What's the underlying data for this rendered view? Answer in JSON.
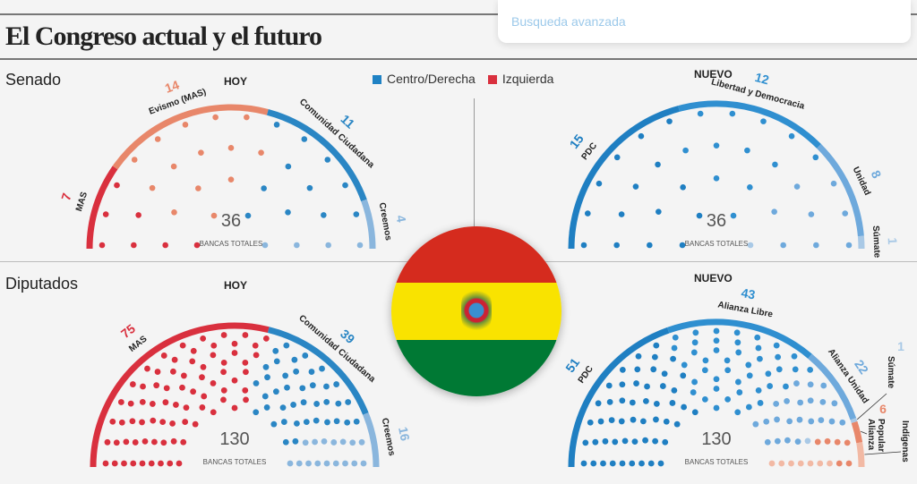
{
  "search": {
    "placeholder": "Busqueda avanzada"
  },
  "title": "El Congreso actual y el futuro",
  "legend": [
    {
      "label": "Centro/Derecha",
      "color": "#1f82c4"
    },
    {
      "label": "Izquierda",
      "color": "#d9303e"
    }
  ],
  "chart_data": [
    {
      "type": "parliament",
      "section": "Senado",
      "label": "HOY",
      "total": 36,
      "total_label": "BANCAS TOTALES",
      "parties": [
        {
          "name": "MAS",
          "seats": 7,
          "color": "#d9303e"
        },
        {
          "name": "Evismo (MAS)",
          "seats": 14,
          "color": "#e8876a"
        },
        {
          "name": "Comunidad Ciudadana",
          "seats": 11,
          "color": "#2a86c4"
        },
        {
          "name": "Creemos",
          "seats": 4,
          "color": "#8ab6dd"
        }
      ]
    },
    {
      "type": "parliament",
      "section": "Senado",
      "label": "NUEVO",
      "total": 36,
      "total_label": "BANCAS TOTALES",
      "parties": [
        {
          "name": "PDC",
          "seats": 15,
          "color": "#1f7fc2"
        },
        {
          "name": "Libertad y Democracia",
          "seats": 12,
          "color": "#2f8fd0"
        },
        {
          "name": "Unidad",
          "seats": 8,
          "color": "#6ea9dc"
        },
        {
          "name": "Súmate",
          "seats": 1,
          "color": "#a9c9e6"
        }
      ]
    },
    {
      "type": "parliament",
      "section": "Diputados",
      "label": "HOY",
      "total": 130,
      "total_label": "BANCAS TOTALES",
      "parties": [
        {
          "name": "MAS",
          "seats": 75,
          "color": "#d9303e"
        },
        {
          "name": "Comunidad Ciudadana",
          "seats": 39,
          "color": "#2a86c4"
        },
        {
          "name": "Creemos",
          "seats": 16,
          "color": "#8ab6dd"
        }
      ]
    },
    {
      "type": "parliament",
      "section": "Diputados",
      "label": "NUEVO",
      "total": 130,
      "total_label": "BANCAS TOTALES",
      "parties": [
        {
          "name": "PDC",
          "seats": 51,
          "color": "#1f7fc2"
        },
        {
          "name": "Alianza Libre",
          "seats": 43,
          "color": "#2f8fd0"
        },
        {
          "name": "Alianza Unidad",
          "seats": 22,
          "color": "#6ea9dc"
        },
        {
          "name": "Súmate",
          "seats": 1,
          "color": "#a9c9e6"
        },
        {
          "name": "Alianza Popular",
          "seats": 6,
          "color": "#e8876a"
        },
        {
          "name": "Indígenas",
          "seats": 7,
          "color": "#f2b9a4",
          "hide_count": true
        }
      ]
    }
  ],
  "flag": {
    "colors": [
      "#d52b1e",
      "#f9e300",
      "#007934"
    ]
  }
}
